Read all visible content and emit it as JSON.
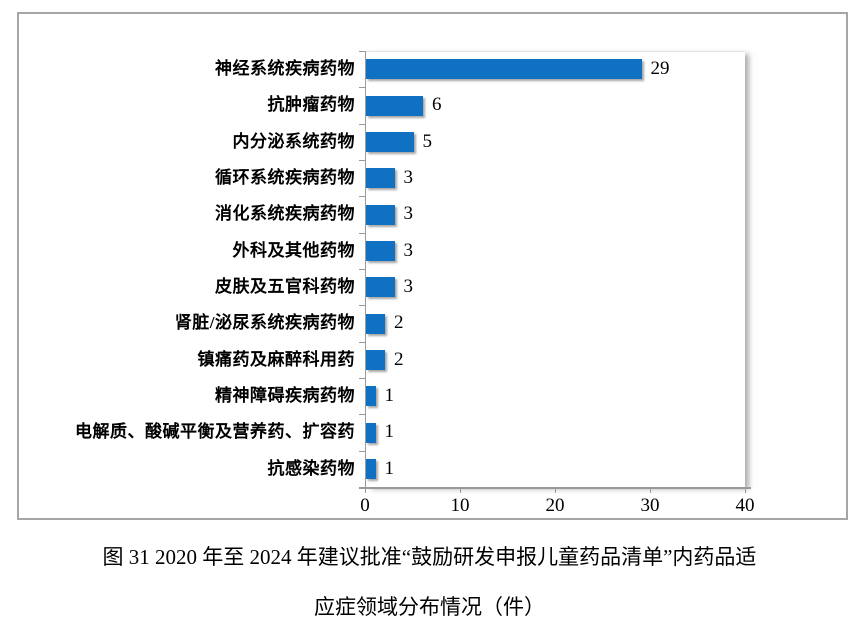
{
  "chart_data": {
    "type": "bar",
    "orientation": "horizontal",
    "categories": [
      "神经系统疾病药物",
      "抗肿瘤药物",
      "内分泌系统药物",
      "循环系统疾病药物",
      "消化系统疾病药物",
      "外科及其他药物",
      "皮肤及五官科药物",
      "肾脏/泌尿系统疾病药物",
      "镇痛药及麻醉科用药",
      "精神障碍疾病药物",
      "电解质、酸碱平衡及营养药、扩容药",
      "抗感染药物"
    ],
    "values": [
      29,
      6,
      5,
      3,
      3,
      3,
      3,
      2,
      2,
      1,
      1,
      1
    ],
    "xlim": [
      0,
      40
    ],
    "x_ticks": [
      "0",
      "10",
      "20",
      "30",
      "40"
    ],
    "bar_color": "#1070c2",
    "grid": false,
    "legend_position": "none",
    "title": "",
    "xlabel": "",
    "ylabel": ""
  },
  "caption": {
    "line1": "图 31  2020 年至 2024 年建议批准“鼓励研发申报儿童药品清单”内药品适",
    "line2": "应症领域分布情况（件）"
  },
  "colors": {
    "frame_border": "#a6a6a6",
    "axis": "#999999",
    "bar": "#1070c2"
  }
}
